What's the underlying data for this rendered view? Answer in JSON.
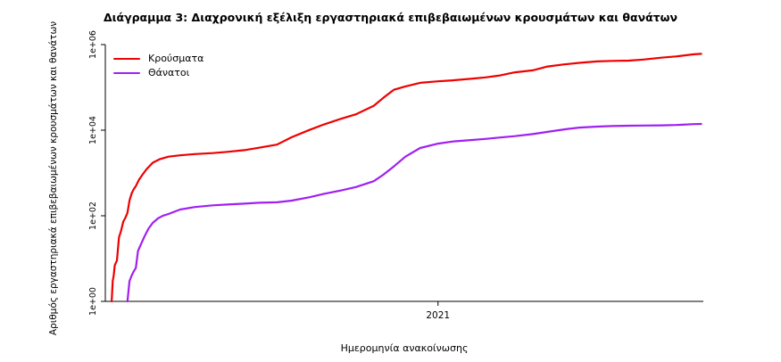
{
  "chart_data": {
    "type": "line",
    "title": "Διάγραμμα 3: Διαχρονική εξέλιξη εργαστηριακά επιβεβαιωμένων κρουσμάτων και θανάτων",
    "xlabel": "Ημερομηνία ανακοίνωσης",
    "ylabel": "Αριθμός εργαστηριακά επιβεβαιωμένων κρουσμάτων και θανάτων",
    "y_scale": "log10",
    "y_domain": [
      1,
      1000000
    ],
    "x_domain": [
      "2020-02-20",
      "2021-09-10"
    ],
    "grid": false,
    "legend_position": "top-left",
    "y_ticks": [
      {
        "value": 1,
        "label": "1e+00"
      },
      {
        "value": 100,
        "label": "1e+02"
      },
      {
        "value": 10000,
        "label": "1e+04"
      },
      {
        "value": 1000000,
        "label": "1e+06"
      }
    ],
    "x_ticks": [
      {
        "date": "2021-01-01",
        "label": "2021"
      }
    ],
    "series": [
      {
        "name": "Κρούσματα",
        "color": "#EE0000",
        "points": [
          [
            "2020-02-26",
            1
          ],
          [
            "2020-02-27",
            3
          ],
          [
            "2020-02-28",
            4
          ],
          [
            "2020-02-29",
            7
          ],
          [
            "2020-03-02",
            9
          ],
          [
            "2020-03-04",
            31
          ],
          [
            "2020-03-06",
            45
          ],
          [
            "2020-03-08",
            73
          ],
          [
            "2020-03-10",
            89
          ],
          [
            "2020-03-12",
            117
          ],
          [
            "2020-03-14",
            228
          ],
          [
            "2020-03-16",
            331
          ],
          [
            "2020-03-18",
            418
          ],
          [
            "2020-03-20",
            495
          ],
          [
            "2020-03-23",
            695
          ],
          [
            "2020-03-26",
            892
          ],
          [
            "2020-03-30",
            1212
          ],
          [
            "2020-04-05",
            1735
          ],
          [
            "2020-04-12",
            2114
          ],
          [
            "2020-04-20",
            2401
          ],
          [
            "2020-05-01",
            2591
          ],
          [
            "2020-05-15",
            2770
          ],
          [
            "2020-06-01",
            2918
          ],
          [
            "2020-06-15",
            3121
          ],
          [
            "2020-07-01",
            3409
          ],
          [
            "2020-07-15",
            3883
          ],
          [
            "2020-08-01",
            4587
          ],
          [
            "2020-08-15",
            6858
          ],
          [
            "2020-09-01",
            10134
          ],
          [
            "2020-09-15",
            13730
          ],
          [
            "2020-10-01",
            18475
          ],
          [
            "2020-10-15",
            23495
          ],
          [
            "2020-11-01",
            37196
          ],
          [
            "2020-11-10",
            56698
          ],
          [
            "2020-11-20",
            87812
          ],
          [
            "2020-12-01",
            105271
          ],
          [
            "2020-12-15",
            127557
          ],
          [
            "2021-01-01",
            138850
          ],
          [
            "2021-01-15",
            146020
          ],
          [
            "2021-02-01",
            158716
          ],
          [
            "2021-02-15",
            171542
          ],
          [
            "2021-03-01",
            190235
          ],
          [
            "2021-03-15",
            224997
          ],
          [
            "2021-04-01",
            249458
          ],
          [
            "2021-04-15",
            307006
          ],
          [
            "2021-05-01",
            344917
          ],
          [
            "2021-05-15",
            373881
          ],
          [
            "2021-06-01",
            404163
          ],
          [
            "2021-06-15",
            414833
          ],
          [
            "2021-07-01",
            421266
          ],
          [
            "2021-07-15",
            446491
          ],
          [
            "2021-08-01",
            494587
          ],
          [
            "2021-08-15",
            528517
          ],
          [
            "2021-09-01",
            594023
          ],
          [
            "2021-09-08",
            607356
          ]
        ]
      },
      {
        "name": "Θάνατοι",
        "color": "#A020F0",
        "points": [
          [
            "2020-03-12",
            1
          ],
          [
            "2020-03-14",
            3
          ],
          [
            "2020-03-16",
            4
          ],
          [
            "2020-03-18",
            5
          ],
          [
            "2020-03-20",
            6
          ],
          [
            "2020-03-22",
            15
          ],
          [
            "2020-03-25",
            22
          ],
          [
            "2020-03-28",
            32
          ],
          [
            "2020-04-01",
            50
          ],
          [
            "2020-04-05",
            68
          ],
          [
            "2020-04-10",
            87
          ],
          [
            "2020-04-15",
            101
          ],
          [
            "2020-04-20",
            110
          ],
          [
            "2020-05-01",
            140
          ],
          [
            "2020-05-15",
            160
          ],
          [
            "2020-06-01",
            175
          ],
          [
            "2020-06-15",
            183
          ],
          [
            "2020-07-01",
            192
          ],
          [
            "2020-07-15",
            201
          ],
          [
            "2020-08-01",
            206
          ],
          [
            "2020-08-15",
            226
          ],
          [
            "2020-09-01",
            271
          ],
          [
            "2020-09-15",
            327
          ],
          [
            "2020-10-01",
            391
          ],
          [
            "2020-10-15",
            469
          ],
          [
            "2020-11-01",
            642
          ],
          [
            "2020-11-10",
            909
          ],
          [
            "2020-11-20",
            1419
          ],
          [
            "2020-12-01",
            2406
          ],
          [
            "2020-12-15",
            3840
          ],
          [
            "2021-01-01",
            4838
          ],
          [
            "2021-01-15",
            5441
          ],
          [
            "2021-02-01",
            5878
          ],
          [
            "2021-02-15",
            6249
          ],
          [
            "2021-03-01",
            6758
          ],
          [
            "2021-03-15",
            7252
          ],
          [
            "2021-04-01",
            8093
          ],
          [
            "2021-04-15",
            9135
          ],
          [
            "2021-05-01",
            10453
          ],
          [
            "2021-05-15",
            11471
          ],
          [
            "2021-06-01",
            12122
          ],
          [
            "2021-06-15",
            12478
          ],
          [
            "2021-07-01",
            12737
          ],
          [
            "2021-07-15",
            12852
          ],
          [
            "2021-08-01",
            12965
          ],
          [
            "2021-08-15",
            13193
          ],
          [
            "2021-09-01",
            13845
          ],
          [
            "2021-09-08",
            14014
          ]
        ]
      }
    ]
  }
}
